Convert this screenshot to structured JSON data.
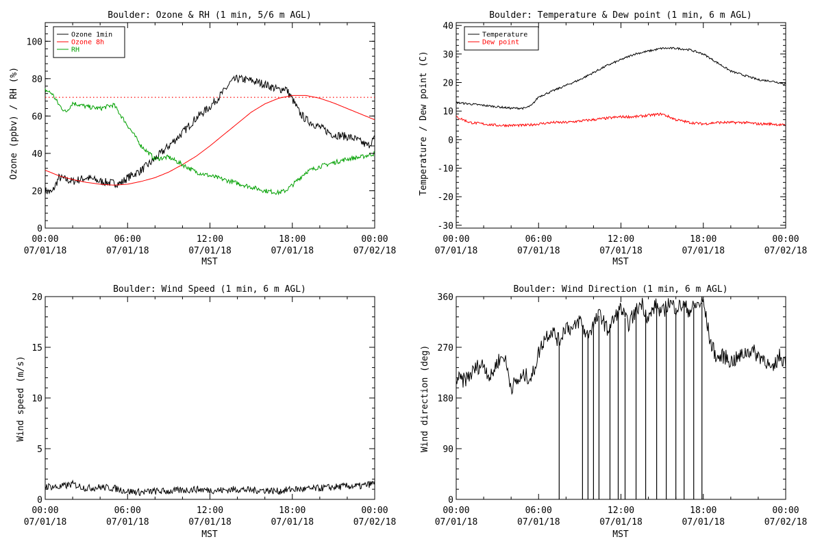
{
  "chart_data": [
    {
      "id": "ozone_rh",
      "type": "line",
      "title": "Boulder: Ozone & RH (1 min, 5/6 m AGL)",
      "xlabel": "MST",
      "ylabel": "Ozone (ppbv) / RH (%)",
      "xlim": [
        0,
        24
      ],
      "ylim": [
        0,
        110
      ],
      "yticks": [
        "0",
        "20",
        "40",
        "60",
        "80",
        "100"
      ],
      "ytick_values": [
        0,
        20,
        40,
        60,
        80,
        100
      ],
      "xticks": [
        {
          "time": "00:00",
          "date": "07/01/18"
        },
        {
          "time": "06:00",
          "date": "07/01/18"
        },
        {
          "time": "12:00",
          "date": "07/01/18"
        },
        {
          "time": "18:00",
          "date": "07/01/18"
        },
        {
          "time": "00:00",
          "date": "07/02/18"
        }
      ],
      "grid": false,
      "legend_position": "top-left",
      "reference_line": {
        "y": 70,
        "color": "#ff0000",
        "style": "dotted"
      },
      "series": [
        {
          "name": "Ozone 1min",
          "color": "#000000",
          "x": [
            0,
            0.5,
            1,
            1.5,
            2,
            3,
            4,
            5,
            5.5,
            6,
            7,
            8,
            9,
            10,
            11,
            12,
            13,
            13.5,
            14,
            15,
            16,
            17,
            17.5,
            18,
            18.5,
            19,
            20,
            21,
            22,
            22.5,
            23,
            23.5,
            24
          ],
          "values": [
            20,
            19,
            27,
            26,
            25,
            27,
            25,
            24,
            24,
            27,
            31,
            37,
            44,
            51,
            59,
            65,
            73,
            78,
            80,
            79,
            77,
            74,
            75,
            69,
            62,
            58,
            54,
            50,
            49,
            48,
            46,
            44,
            48
          ]
        },
        {
          "name": "Ozone 8h",
          "color": "#ff0000",
          "x": [
            0,
            1,
            2,
            3,
            4,
            5,
            6,
            7,
            8,
            9,
            10,
            11,
            12,
            13,
            14,
            15,
            16,
            17,
            18,
            19,
            20,
            21,
            22,
            23,
            24
          ],
          "values": [
            31,
            28,
            26,
            24.5,
            23.5,
            23,
            23.5,
            25,
            27,
            30,
            34,
            38.5,
            44,
            50,
            56,
            62,
            66.5,
            69.5,
            71,
            71,
            69.5,
            67,
            64,
            61,
            58
          ]
        },
        {
          "name": "RH",
          "color": "#00a000",
          "x": [
            0,
            0.5,
            1,
            1.5,
            2,
            3,
            4,
            5,
            6,
            7,
            8,
            9,
            10,
            11,
            12,
            13,
            14,
            15,
            16,
            17,
            17.5,
            18,
            19,
            20,
            21,
            22,
            23,
            24
          ],
          "values": [
            74,
            72,
            66,
            62,
            67,
            65,
            64,
            66,
            55,
            44,
            37,
            38,
            34,
            30,
            28,
            26,
            24,
            22,
            20,
            19,
            20,
            23,
            30,
            33,
            35,
            37,
            38,
            40
          ]
        }
      ]
    },
    {
      "id": "temp_dew",
      "type": "line",
      "title": "Boulder: Temperature & Dew point (1 min, 6 m AGL)",
      "xlabel": "MST",
      "ylabel": "Temperature / Dew point (C)",
      "xlim": [
        0,
        24
      ],
      "ylim": [
        -31,
        41
      ],
      "yticks": [
        "-30",
        "-20",
        "-10",
        "0",
        "10",
        "20",
        "30",
        "40"
      ],
      "ytick_values": [
        -30,
        -20,
        -10,
        0,
        10,
        20,
        30,
        40
      ],
      "xticks": [
        {
          "time": "00:00",
          "date": "07/01/18"
        },
        {
          "time": "06:00",
          "date": "07/01/18"
        },
        {
          "time": "12:00",
          "date": "07/01/18"
        },
        {
          "time": "18:00",
          "date": "07/01/18"
        },
        {
          "time": "00:00",
          "date": "07/02/18"
        }
      ],
      "grid": false,
      "legend_position": "top-left",
      "series": [
        {
          "name": "Temperature",
          "color": "#000000",
          "x": [
            0,
            1,
            2,
            3,
            4,
            5,
            5.5,
            6,
            7,
            8,
            9,
            10,
            11,
            12,
            13,
            14,
            15,
            16,
            17,
            18,
            19,
            20,
            21,
            22,
            23,
            24
          ],
          "values": [
            13,
            12.5,
            12,
            11.5,
            11,
            11,
            12,
            15,
            17,
            19,
            21,
            23.5,
            26,
            28,
            30,
            31,
            32,
            32,
            31.5,
            30,
            27,
            24,
            22.5,
            21,
            20.5,
            19.5
          ]
        },
        {
          "name": "Dew point",
          "color": "#ff0000",
          "x": [
            0,
            1,
            2,
            3,
            4,
            5,
            6,
            7,
            8,
            9,
            10,
            11,
            12,
            13,
            14,
            15,
            16,
            17,
            18,
            19,
            20,
            21,
            22,
            23,
            24
          ],
          "values": [
            8,
            6,
            5.5,
            5,
            5,
            5,
            5.5,
            6,
            6,
            6.5,
            7,
            7.5,
            8,
            8,
            8.5,
            9,
            7,
            6,
            5.5,
            6,
            6,
            6,
            5.5,
            5.5,
            5
          ]
        }
      ]
    },
    {
      "id": "wind_speed",
      "type": "line",
      "title": "Boulder: Wind Speed (1 min, 6 m AGL)",
      "xlabel": "MST",
      "ylabel": "Wind speed (m/s)",
      "xlim": [
        0,
        24
      ],
      "ylim": [
        0,
        20
      ],
      "yticks": [
        "0",
        "5",
        "10",
        "15",
        "20"
      ],
      "ytick_values": [
        0,
        5,
        10,
        15,
        20
      ],
      "xticks": [
        {
          "time": "00:00",
          "date": "07/01/18"
        },
        {
          "time": "06:00",
          "date": "07/01/18"
        },
        {
          "time": "12:00",
          "date": "07/01/18"
        },
        {
          "time": "18:00",
          "date": "07/01/18"
        },
        {
          "time": "00:00",
          "date": "07/02/18"
        }
      ],
      "grid": false,
      "series": [
        {
          "name": "",
          "color": "#000000",
          "x": [
            0,
            1,
            2,
            3,
            4,
            5,
            6,
            7,
            8,
            9,
            10,
            11,
            12,
            13,
            14,
            15,
            16,
            17,
            18,
            19,
            20,
            21,
            22,
            23,
            24
          ],
          "values": [
            1.3,
            1.2,
            1.5,
            1.1,
            1.2,
            1.1,
            0.8,
            0.7,
            0.8,
            0.8,
            0.9,
            1.0,
            0.9,
            0.9,
            1.0,
            0.9,
            0.9,
            0.8,
            1.0,
            1.0,
            1.1,
            1.2,
            1.3,
            1.3,
            1.6
          ]
        }
      ]
    },
    {
      "id": "wind_dir",
      "type": "line",
      "title": "Boulder: Wind Direction (1 min, 6 m AGL)",
      "xlabel": "MST",
      "ylabel": "Wind direction (deg)",
      "xlim": [
        0,
        24
      ],
      "ylim": [
        0,
        360
      ],
      "yticks": [
        "0",
        "90",
        "180",
        "270",
        "360"
      ],
      "ytick_values": [
        0,
        90,
        180,
        270,
        360
      ],
      "xticks": [
        {
          "time": "00:00",
          "date": "07/01/18"
        },
        {
          "time": "06:00",
          "date": "07/01/18"
        },
        {
          "time": "12:00",
          "date": "07/01/18"
        },
        {
          "time": "18:00",
          "date": "07/01/18"
        },
        {
          "time": "00:00",
          "date": "07/02/18"
        }
      ],
      "grid": false,
      "series": [
        {
          "name": "",
          "color": "#000000",
          "x": [
            0,
            0.5,
            1,
            1.5,
            2,
            2.5,
            3,
            3.5,
            4,
            4.5,
            5,
            5.5,
            6,
            6.5,
            7,
            7.5,
            8,
            8.5,
            9,
            9.5,
            10,
            10.5,
            11,
            11.5,
            12,
            12.5,
            13,
            13.5,
            14,
            14.5,
            15,
            15.5,
            16,
            16.5,
            17,
            17.5,
            18,
            18.5,
            19,
            19.5,
            20,
            20.5,
            21,
            21.5,
            22,
            22.5,
            23,
            23.5,
            24
          ],
          "values": [
            215,
            210,
            220,
            235,
            240,
            215,
            245,
            255,
            200,
            210,
            220,
            215,
            260,
            290,
            300,
            280,
            310,
            300,
            320,
            290,
            310,
            330,
            300,
            320,
            340,
            310,
            330,
            350,
            320,
            345,
            330,
            350,
            340,
            345,
            335,
            345,
            350,
            280,
            250,
            255,
            245,
            250,
            260,
            265,
            255,
            250,
            225,
            255,
            245
          ]
        },
        {
          "name": "",
          "color": "#000000",
          "x": [
            7.5,
            9.2,
            9.6,
            10.0,
            10.4,
            11.2,
            11.8,
            12.3,
            13.1,
            13.8,
            14.6,
            15.3,
            16.0,
            16.6,
            17.3,
            17.9
          ],
          "values": [
            0,
            0,
            0,
            0,
            0,
            0,
            0,
            0,
            0,
            0,
            0,
            0,
            0,
            0,
            0,
            0
          ],
          "render": "spikes"
        }
      ]
    }
  ]
}
